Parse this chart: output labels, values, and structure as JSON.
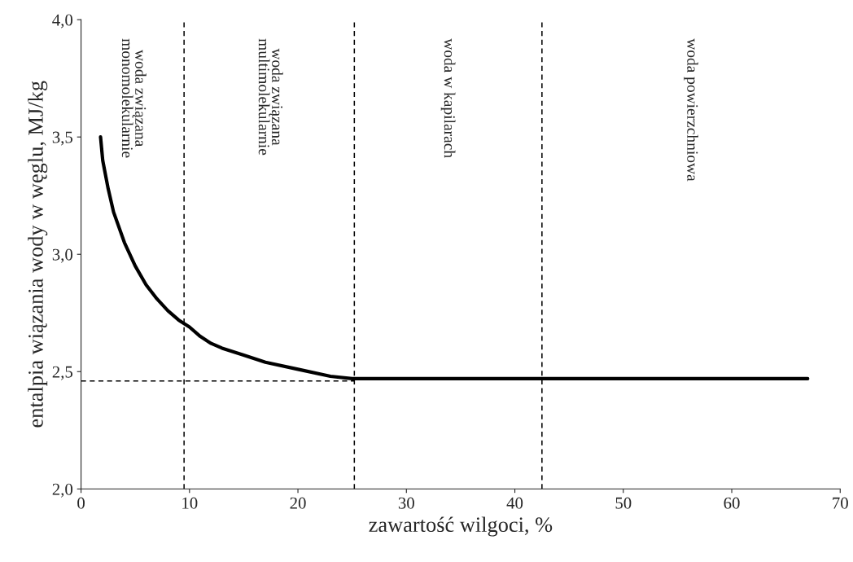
{
  "chart_data": {
    "type": "line",
    "xlabel": "zawartość wilgoci, %",
    "ylabel": "entalpia wiązania wody w węglu, MJ/kg",
    "xlim": [
      0,
      70
    ],
    "xticks": [
      0,
      10,
      20,
      30,
      40,
      50,
      60,
      70
    ],
    "ylim": [
      2.0,
      4.0
    ],
    "yticks": [
      {
        "value": 2.0,
        "label": "2,0"
      },
      {
        "value": 2.5,
        "label": "2,5"
      },
      {
        "value": 3.0,
        "label": "3,0"
      },
      {
        "value": 3.5,
        "label": "3,5"
      },
      {
        "value": 4.0,
        "label": "4,0"
      }
    ],
    "grid": false,
    "legend": false,
    "series": [
      {
        "color": "#000000",
        "line_style": "solid",
        "x": [
          1.8,
          2.0,
          2.5,
          3,
          4,
          5,
          6,
          7,
          8,
          9,
          10,
          11,
          12,
          13,
          15,
          17,
          20,
          23,
          25,
          26,
          67
        ],
        "values": [
          3.5,
          3.4,
          3.28,
          3.18,
          3.05,
          2.95,
          2.87,
          2.81,
          2.76,
          2.72,
          2.69,
          2.65,
          2.62,
          2.6,
          2.57,
          2.54,
          2.51,
          2.48,
          2.47,
          2.47,
          2.47
        ]
      },
      {
        "color": "#000000",
        "line_style": "dashed",
        "x": [
          0,
          25.2
        ],
        "values": [
          2.46,
          2.46
        ]
      }
    ],
    "ref_lines": [
      {
        "axis": "x",
        "value": 9.5,
        "color": "#000000",
        "line_style": "dashed"
      },
      {
        "axis": "x",
        "value": 25.2,
        "color": "#000000",
        "line_style": "dashed"
      },
      {
        "axis": "x",
        "value": 42.5,
        "color": "#000000",
        "line_style": "dashed"
      }
    ],
    "annotations": [
      "woda związana\nmonomolekularnie",
      "woda związana\nmultimolekularnie",
      "woda w kapilarach",
      "woda powierzchniowa"
    ]
  }
}
